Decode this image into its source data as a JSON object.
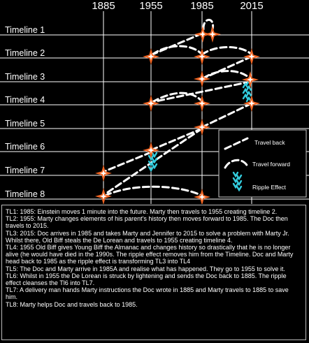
{
  "years": [
    "1885",
    "1955",
    "1985",
    "2015"
  ],
  "timelines": [
    "Timeline 1",
    "Timeline 2",
    "Timeline 3",
    "Timeline 4",
    "Timeline 5",
    "Timeline 6",
    "Timeline 7",
    "Timeline 8"
  ],
  "legend": {
    "travel_back": "Travel back",
    "travel_forward": "Travel forward",
    "ripple_effect": "Ripple Effect"
  },
  "colors": {
    "background": "#000000",
    "lines": "#ffffff",
    "star": "#f26522",
    "ripple": "#33ccdd"
  },
  "notes": [
    "TL1: 1985: Einstein moves 1 minute into the future. Marty then travels to 1955 creating timeline 2.",
    "TL2: 1955: Marty changes elements of his parent's history then moves forward to 1985. The Doc then travels to 2015.",
    "TL3: 2015: Doc arrives in 1985 and takes Marty and Jennifer to 2015 to solve a problem with Marty Jr. Whilst there, Old Biff steals the De Lorean and travels to 1955 creating timeline 4.",
    "TL4: 1955 Old Biff gives Young Biff the Almanac and changes history so drastically that he is no longer alive (he would have died in the 1990s. The ripple effect removes him from the Timeline. Doc and Marty head back to 1985 as the ripple effect is transforming TL3 into TL4",
    "TL5: The Doc and Marty arrive in 1985A and realise what has happened. They go to 1955 to solve it.",
    "TL6: Whilst in 1955 the De Lorean is struck by lightening and sends the Doc back to 1885. The ripple effect cleanses the Tl6 into TL7.",
    "TL7: A delivery man hands Marty instructions the Doc wrote in 1885 and Marty travels to 1885 to save him.",
    "TL8: Marty helps Doc and travels back to 1985."
  ]
}
